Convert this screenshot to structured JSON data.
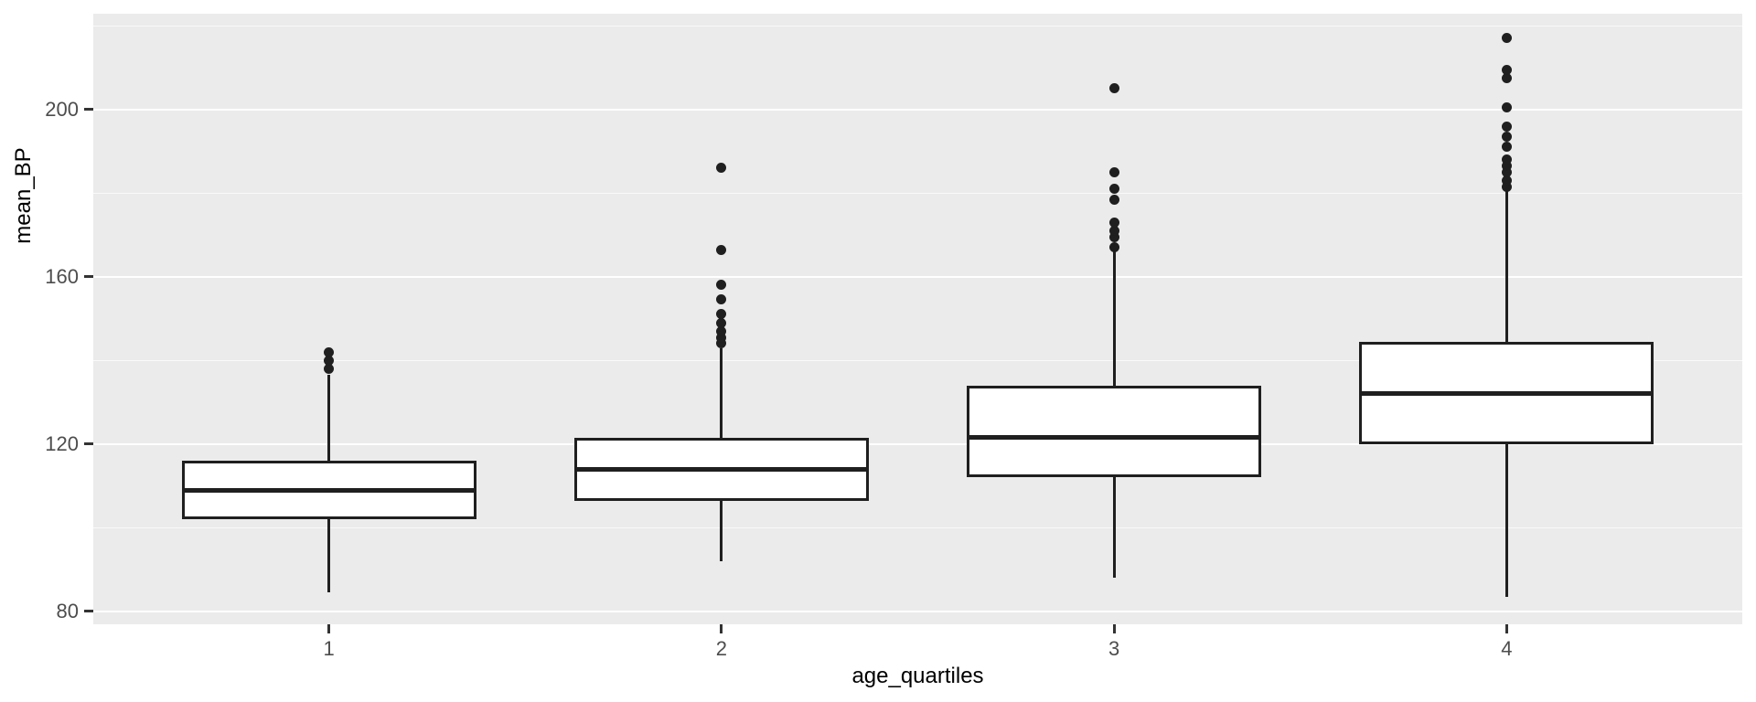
{
  "chart_data": {
    "type": "boxplot",
    "title": "",
    "xlabel": "age_quartiles",
    "ylabel": "mean_BP",
    "categories": [
      "1",
      "2",
      "3",
      "4"
    ],
    "yticks": [
      80,
      120,
      160,
      200
    ],
    "ytick_labels": [
      "80",
      "120",
      "160",
      "200"
    ],
    "yticks_minor": [
      100,
      140,
      180,
      220
    ],
    "ylim": [
      76.9,
      222.9
    ],
    "grid": "on",
    "legend": "none",
    "series": [
      {
        "category": "1",
        "whisker_low": 84.5,
        "q1": 102,
        "median": 109,
        "q3": 116,
        "whisker_high": 136.5,
        "outliers": [
          138,
          140,
          142
        ]
      },
      {
        "category": "2",
        "whisker_low": 92,
        "q1": 106.5,
        "median": 114,
        "q3": 121.5,
        "whisker_high": 143,
        "outliers": [
          144,
          145.5,
          147,
          149,
          151,
          154.5,
          158,
          166.5,
          186
        ]
      },
      {
        "category": "3",
        "whisker_low": 88,
        "q1": 112,
        "median": 121.5,
        "q3": 134,
        "whisker_high": 166,
        "outliers": [
          167,
          169.5,
          171,
          173,
          178.5,
          181,
          185,
          205
        ]
      },
      {
        "category": "4",
        "whisker_low": 83.5,
        "q1": 120,
        "median": 132,
        "q3": 144.5,
        "whisker_high": 180.5,
        "outliers": [
          181.5,
          183,
          185,
          186.5,
          188,
          191,
          193.5,
          196,
          200.5,
          207.5,
          209.5,
          217
        ]
      }
    ]
  },
  "colors": {
    "panel_background": "#EBEBEB",
    "gridline": "#FFFFFF",
    "box_stroke": "#1F1F1F",
    "box_fill": "#FFFFFF",
    "outlier": "#1F1F1F",
    "tick_text": "#4D4D4D",
    "tick_mark": "#333333",
    "axis_title_text": "#000000"
  }
}
